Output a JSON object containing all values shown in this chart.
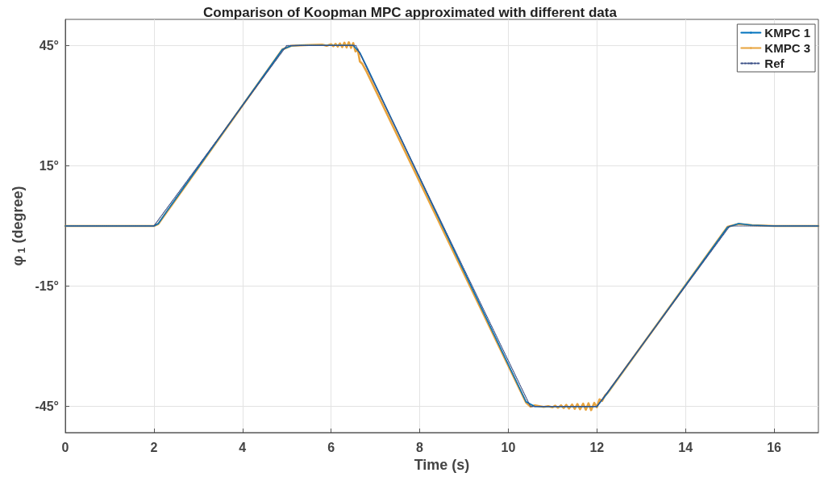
{
  "chart_data": {
    "type": "line",
    "title": "Comparison of Koopman MPC approximated with different data",
    "xlabel": "Time (s)",
    "ylabel": "φ$_{1}$ (degree)",
    "xlim": [
      0,
      17
    ],
    "xticks": [
      0,
      2,
      4,
      6,
      8,
      10,
      12,
      14,
      16
    ],
    "ylim": [
      -51.5,
      51.5
    ],
    "yticks": [
      {
        "value": -45,
        "label": "-45°"
      },
      {
        "value": -15,
        "label": "-15°"
      },
      {
        "value": 15,
        "label": "15°"
      },
      {
        "value": 45,
        "label": "45°"
      }
    ],
    "grid": true,
    "legend": "top right",
    "marker": "none",
    "series": [
      {
        "name": "KMPC 1",
        "color": "#0072bd",
        "line_style": "solid",
        "x": [
          0,
          2,
          2.1,
          2.3,
          4.9,
          5.1,
          5.3,
          6.5,
          6.65,
          6.8,
          10.4,
          10.6,
          12,
          12.2,
          14.95,
          15.2,
          15.5,
          16,
          17
        ],
        "values": [
          0,
          0,
          0.6,
          3.8,
          44,
          44.9,
          45,
          45,
          43.2,
          39.8,
          -43.8,
          -45,
          -45,
          -42.2,
          -0.3,
          0.6,
          0.2,
          0,
          0
        ]
      },
      {
        "name": "KMPC 3",
        "color": "#e8a33d",
        "line_style": "solid",
        "x": [
          0,
          2,
          2.1,
          2.3,
          4.9,
          5.1,
          5.5,
          5.8,
          5.9,
          6.0,
          6.05,
          6.1,
          6.15,
          6.2,
          6.25,
          6.3,
          6.35,
          6.4,
          6.45,
          6.5,
          6.55,
          6.6,
          6.65,
          6.7,
          6.8,
          10.4,
          10.5,
          10.6,
          10.8,
          10.9,
          11.0,
          11.06,
          11.12,
          11.19,
          11.25,
          11.31,
          11.37,
          11.44,
          11.5,
          11.56,
          11.62,
          11.69,
          11.75,
          11.81,
          11.87,
          11.94,
          12.0,
          12.06,
          12.12,
          12.18,
          12.25,
          14.95,
          15.2,
          15.5,
          16,
          17
        ],
        "values": [
          0,
          0,
          0.5,
          3.6,
          44,
          44.9,
          45.1,
          45.2,
          44.9,
          45.3,
          44.8,
          45.4,
          44.7,
          45.5,
          44.6,
          45.7,
          44.5,
          45.8,
          44.4,
          45.6,
          43.5,
          44,
          41,
          40.5,
          38.5,
          -44,
          -45,
          -44.7,
          -45.1,
          -44.9,
          -45.2,
          -44.8,
          -45.3,
          -44.7,
          -45.4,
          -44.6,
          -45.5,
          -44.5,
          -45.6,
          -44.4,
          -45.7,
          -44.3,
          -45.8,
          -44.2,
          -45.9,
          -44.1,
          -45.2,
          -43.2,
          -43.6,
          -42.3,
          -41.5,
          -0.2,
          0.5,
          0.2,
          0,
          0
        ]
      },
      {
        "name": "Ref",
        "color": "#3a4f86",
        "line_style": "dotted",
        "x": [
          0,
          2,
          5,
          6.56,
          10.5,
          12,
          15,
          17
        ],
        "values": [
          0,
          0,
          45,
          45,
          -45,
          -45,
          0,
          0
        ]
      }
    ]
  }
}
